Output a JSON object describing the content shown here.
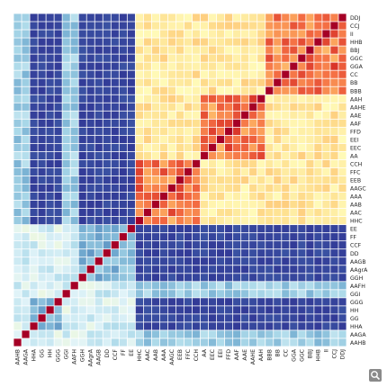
{
  "chart_data": {
    "type": "heatmap",
    "title": "",
    "labels": [
      "AAHB",
      "AAGA",
      "HHA",
      "GG",
      "HH",
      "GGG",
      "GGI",
      "AAFH",
      "GGH",
      "AAgrA",
      "AAGB",
      "DD",
      "CCF",
      "FF",
      "EE",
      "HHC",
      "AAC",
      "AAB",
      "AAA",
      "AAGC",
      "EEB",
      "FFC",
      "CCH",
      "AA",
      "EEC",
      "EEI",
      "FFD",
      "AAF",
      "AAE",
      "AAHE",
      "AAH",
      "BBB",
      "BB",
      "CC",
      "GGA",
      "GGC",
      "BBJ",
      "HHB",
      "II",
      "CCJ",
      "DDJ"
    ],
    "axis_orientation": "x labels left-to-right; y labels bottom-to-top",
    "blocks": [
      {
        "name": "outer-group",
        "start": 0,
        "end": 14
      },
      {
        "name": "dark-block",
        "start": 2,
        "end": 5
      },
      {
        "name": "dark-block-2",
        "start": 8,
        "end": 14
      },
      {
        "name": "inner-group",
        "start": 15,
        "end": 40
      },
      {
        "name": "sub-cluster-a",
        "start": 15,
        "end": 22
      },
      {
        "name": "sub-cluster-b",
        "start": 23,
        "end": 30
      },
      {
        "name": "sub-cluster-c",
        "start": 31,
        "end": 40
      }
    ],
    "value_range": [
      -1,
      1
    ],
    "colorscale": [
      "#313695",
      "#4575b4",
      "#74add1",
      "#abd9e9",
      "#e0f3f8",
      "#ffffbf",
      "#fee090",
      "#fdae61",
      "#f46d43",
      "#d73027",
      "#a50026"
    ]
  }
}
